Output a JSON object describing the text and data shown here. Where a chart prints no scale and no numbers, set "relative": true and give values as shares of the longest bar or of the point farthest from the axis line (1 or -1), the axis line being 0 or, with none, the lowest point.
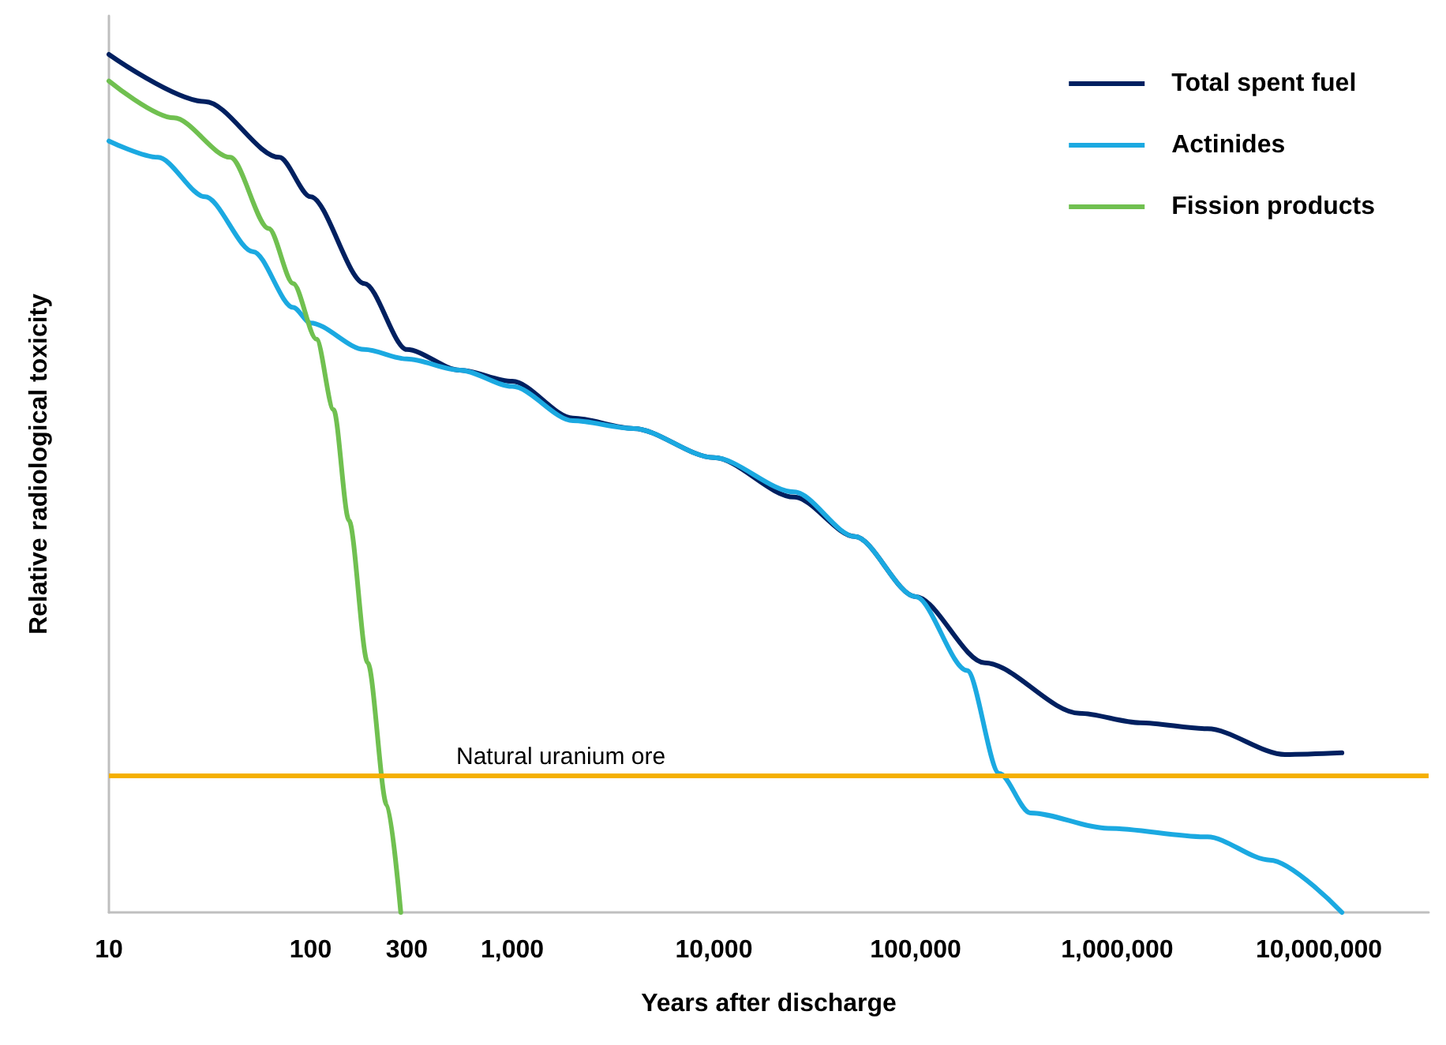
{
  "chart_data": {
    "type": "line",
    "relative": true,
    "log": "x",
    "xlabel": "Years after discharge",
    "ylabel": "Relative radiological toxicity",
    "xlim": [
      10,
      35000000
    ],
    "xticks": [
      10,
      100,
      300,
      {
        "value": 1000,
        "label": "1,000"
      },
      {
        "value": 10000,
        "label": "10,000"
      },
      {
        "value": 100000,
        "label": "100,000"
      },
      {
        "value": 1000000,
        "label": "1,000,000"
      },
      {
        "value": 10000000,
        "label": "10,000,000"
      }
    ],
    "grid": false,
    "legend": "top right",
    "marker": "none",
    "line_style": "solid",
    "series": [
      {
        "name": "Total spent fuel",
        "color": "#002060",
        "x": [
          10,
          30,
          70,
          100,
          185,
          300,
          550,
          1000,
          2000,
          4000,
          10000,
          25000,
          50000,
          100000,
          220000,
          650000,
          1300000,
          2800000,
          6800000,
          13000000
        ],
        "values": [
          1.0,
          0.945,
          0.88,
          0.834,
          0.733,
          0.656,
          0.632,
          0.619,
          0.576,
          0.564,
          0.53,
          0.484,
          0.438,
          0.368,
          0.291,
          0.232,
          0.221,
          0.214,
          0.184,
          0.186
        ]
      },
      {
        "name": "Actinides",
        "color": "#1ba9e1",
        "x": [
          10,
          17.5,
          30,
          52,
          82,
          100,
          185,
          300,
          550,
          1000,
          2000,
          4000,
          10000,
          25000,
          50000,
          100000,
          180000,
          260000,
          370000,
          900000,
          2800000,
          5700000,
          13000000
        ],
        "values": [
          0.899,
          0.88,
          0.834,
          0.77,
          0.705,
          0.687,
          0.656,
          0.645,
          0.632,
          0.613,
          0.573,
          0.564,
          0.53,
          0.49,
          0.438,
          0.368,
          0.282,
          0.162,
          0.116,
          0.098,
          0.088,
          0.061,
          0
        ]
      },
      {
        "name": "Fission products",
        "color": "#70c050",
        "x": [
          10,
          21,
          40,
          62,
          82,
          107,
          130,
          155,
          192,
          239,
          280
        ],
        "values": [
          0.969,
          0.926,
          0.88,
          0.797,
          0.733,
          0.668,
          0.586,
          0.457,
          0.291,
          0.125,
          0
        ]
      }
    ],
    "ref_lines": [
      {
        "axis": "y",
        "value": 0.162,
        "label": "Natural uranium ore",
        "color": "#f5b000",
        "line_style": "solid"
      }
    ]
  }
}
